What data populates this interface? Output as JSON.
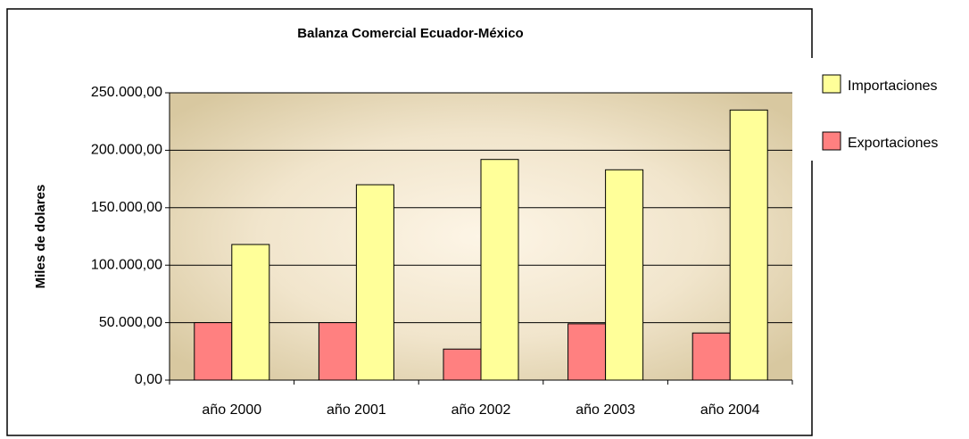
{
  "chart_data": {
    "type": "bar",
    "title": "Balanza Comercial Ecuador-México",
    "y_label": "Miles de dolares",
    "categories": [
      "año 2000",
      "año 2001",
      "año 2002",
      "año 2003",
      "año 2004"
    ],
    "series": [
      {
        "name": "Exportaciones",
        "color": "#ff8080",
        "values": [
          50000,
          50000,
          27000,
          49000,
          41000
        ]
      },
      {
        "name": "Importaciones",
        "color": "#ffff99",
        "values": [
          118000,
          170000,
          192000,
          183000,
          235000
        ]
      }
    ],
    "ylim": [
      0,
      250000
    ],
    "yticks": [
      {
        "value": 0,
        "label": "0,00"
      },
      {
        "value": 50000,
        "label": "50.000,00"
      },
      {
        "value": 100000,
        "label": "100.000,00"
      },
      {
        "value": 150000,
        "label": "150.000,00"
      },
      {
        "value": 200000,
        "label": "200.000,00"
      },
      {
        "value": 250000,
        "label": "250.000,00"
      }
    ],
    "grid": true,
    "legend": "right"
  }
}
